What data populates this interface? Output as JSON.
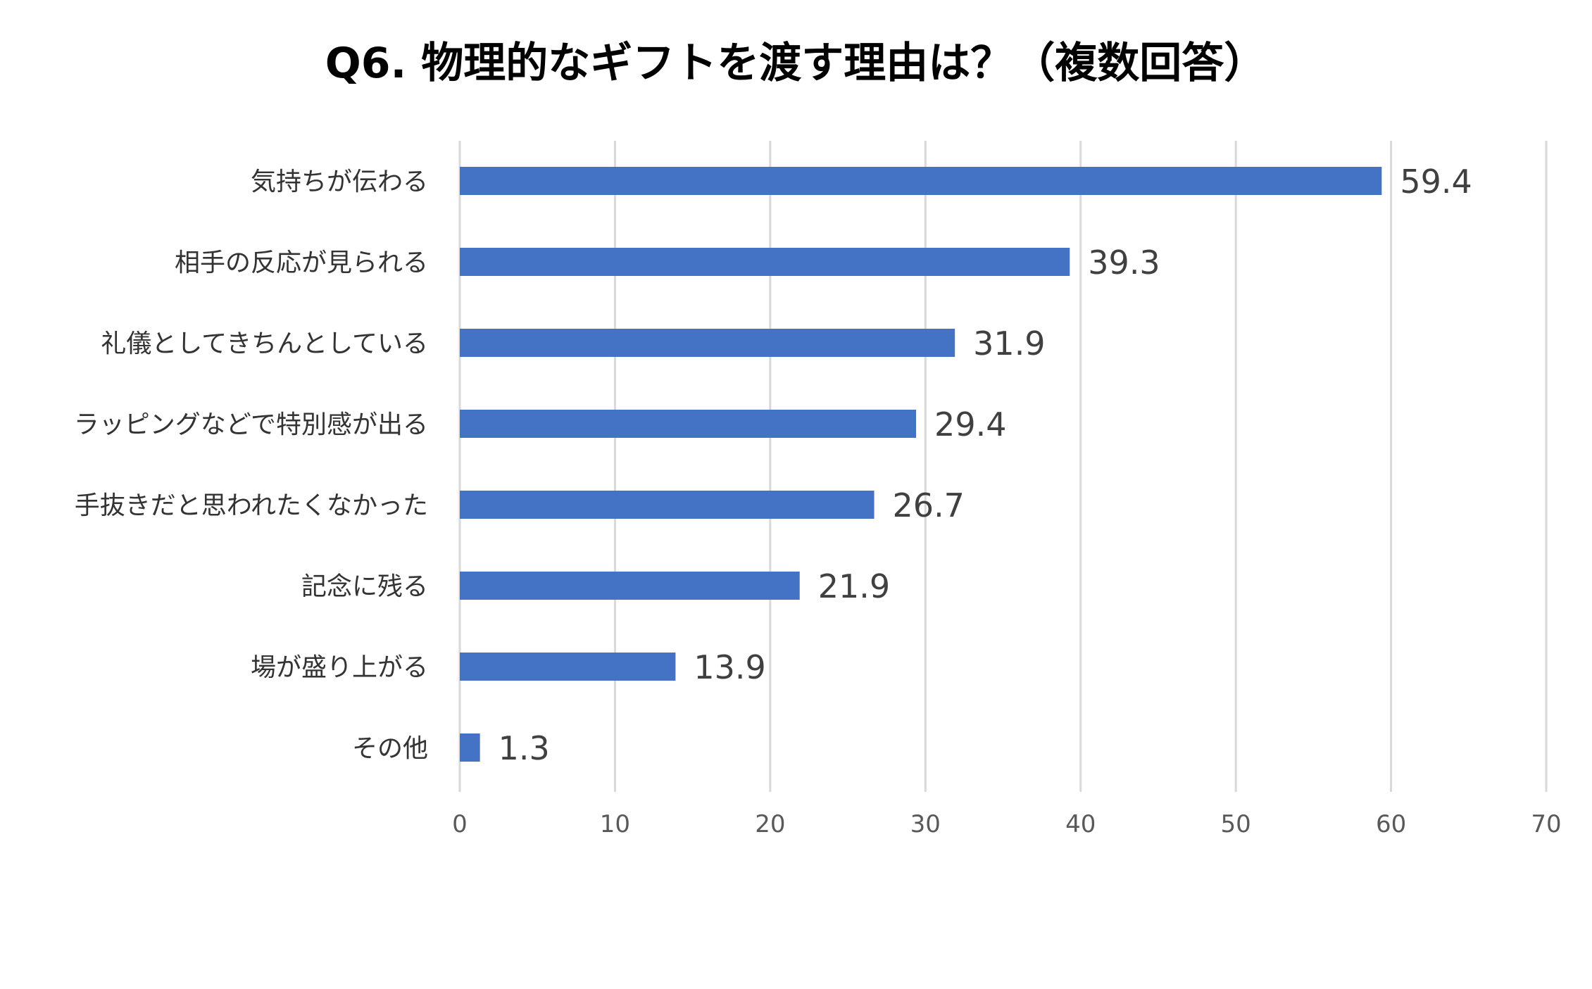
{
  "chart_data": {
    "type": "bar",
    "orientation": "horizontal",
    "title": "Q6. 物理的なギフトを渡す理由は？（複数回答）",
    "categories": [
      "気持ちが伝わる",
      "相手の反応が見られる",
      "礼儀としてきちんとしている",
      "ラッピングなどで特別感が出る",
      "手抜きだと思われたくなかった",
      "記念に残る",
      "場が盛り上がる",
      "その他"
    ],
    "values": [
      59.4,
      39.3,
      31.9,
      29.4,
      26.7,
      21.9,
      13.9,
      1.3
    ],
    "value_labels": [
      "59.4",
      "39.3",
      "31.9",
      "29.4",
      "26.7",
      "21.9",
      "13.9",
      "1.3"
    ],
    "xlim": [
      0,
      70
    ],
    "xticks": [
      0,
      10,
      20,
      30,
      40,
      50,
      60,
      70
    ],
    "xtick_labels": [
      "0",
      "10",
      "20",
      "30",
      "40",
      "50",
      "60",
      "70"
    ],
    "xlabel": "",
    "ylabel": "",
    "grid": true,
    "legend": "none",
    "bar_color": "#4472c4"
  }
}
